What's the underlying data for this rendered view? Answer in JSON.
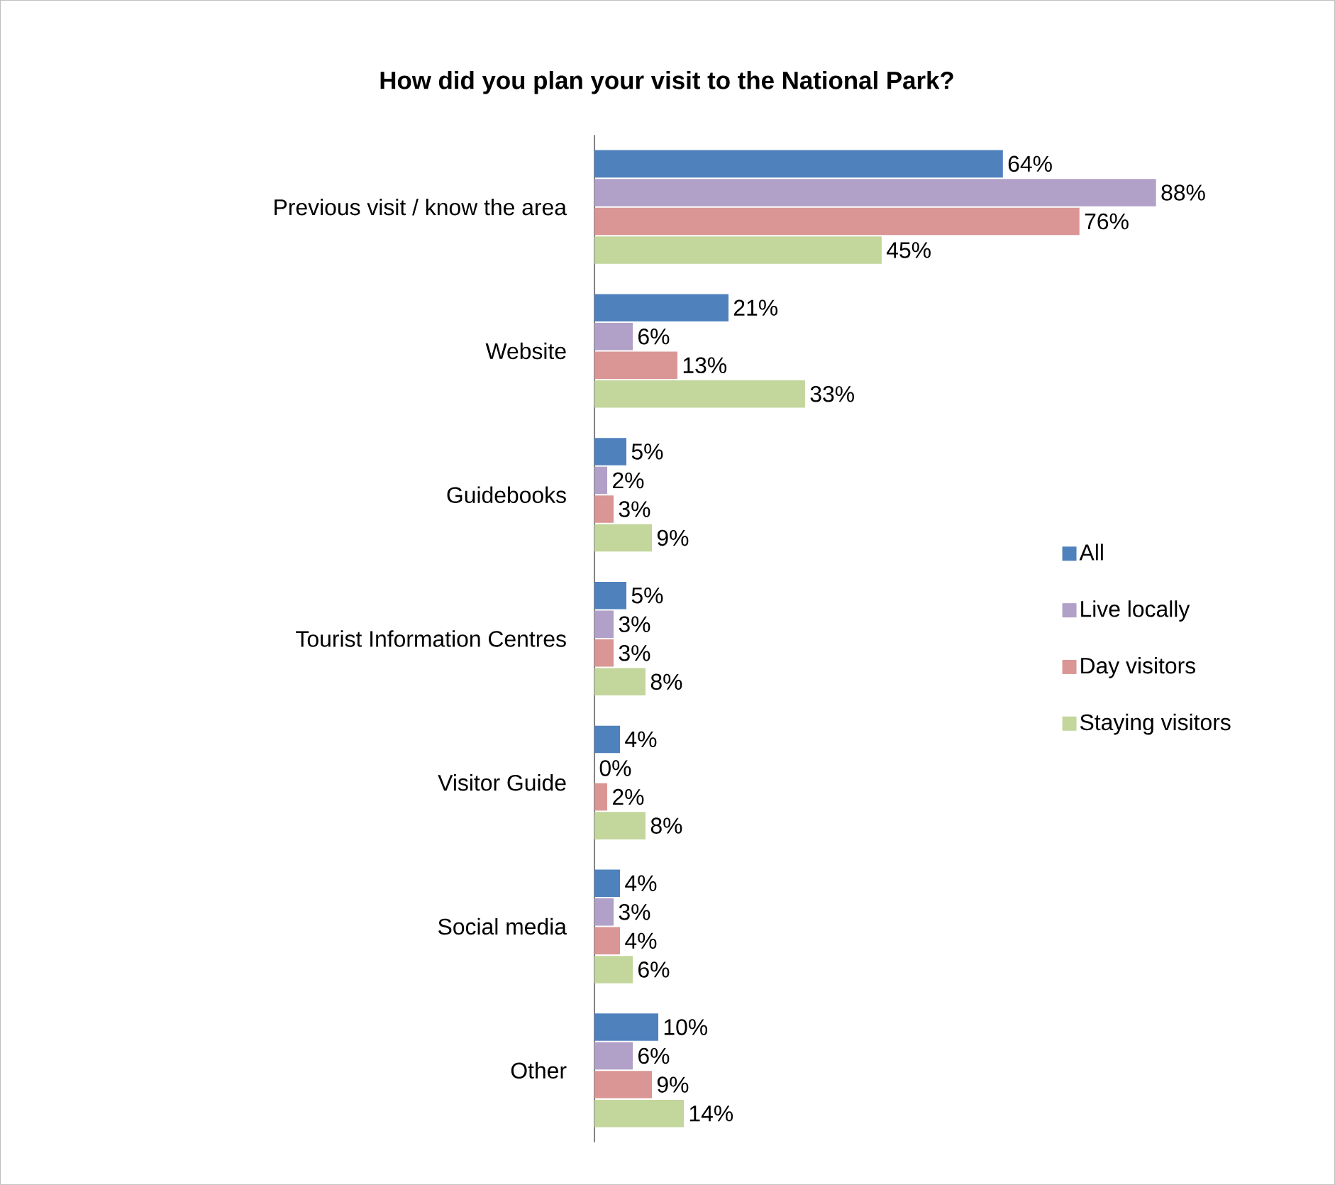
{
  "chart_data": {
    "type": "bar",
    "orientation": "horizontal",
    "title": "How did you plan your visit to the National Park?",
    "categories": [
      "Previous visit / know the area",
      "Website",
      "Guidebooks",
      "Tourist Information Centres",
      "Visitor Guide",
      "Social media",
      "Other"
    ],
    "series": [
      {
        "name": "All",
        "color": "#4f81bd",
        "values": [
          64,
          21,
          5,
          5,
          4,
          4,
          10
        ],
        "value_labels": [
          "64%",
          "21%",
          "5%",
          "5%",
          "4%",
          "4%",
          "10%"
        ]
      },
      {
        "name": "Live locally",
        "color": "#b1a0c7",
        "values": [
          88,
          6,
          2,
          3,
          0,
          3,
          6
        ],
        "value_labels": [
          "88%",
          "6%",
          "2%",
          "3%",
          "0%",
          "3%",
          "6%"
        ]
      },
      {
        "name": "Day visitors",
        "color": "#da9694",
        "values": [
          76,
          13,
          3,
          3,
          2,
          4,
          9
        ],
        "value_labels": [
          "76%",
          "13%",
          "3%",
          "3%",
          "2%",
          "4%",
          "9%"
        ]
      },
      {
        "name": "Staying visitors",
        "color": "#c3d69b",
        "values": [
          45,
          33,
          9,
          8,
          8,
          6,
          14
        ],
        "value_labels": [
          "45%",
          "33%",
          "9%",
          "8%",
          "8%",
          "6%",
          "14%"
        ]
      }
    ],
    "legend": "right"
  }
}
